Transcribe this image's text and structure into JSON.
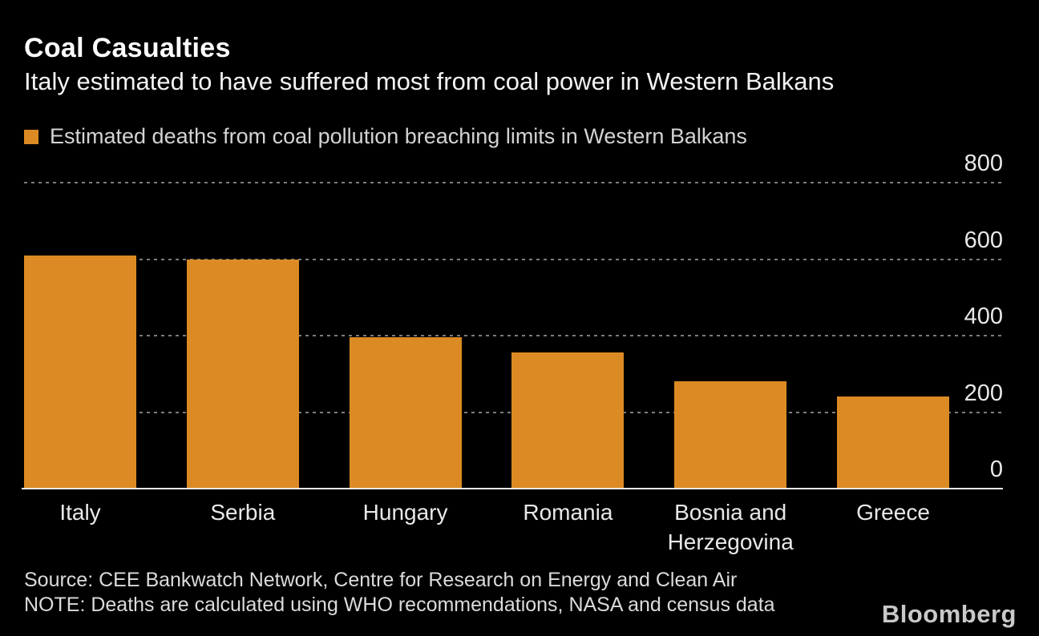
{
  "header": {
    "title": "Coal Casualties",
    "subtitle": "Italy estimated to have suffered most from coal power in Western Balkans"
  },
  "legend": {
    "label": "Estimated deaths from coal pollution breaching limits in Western Balkans"
  },
  "chart_data": {
    "type": "bar",
    "title": "Coal Casualties",
    "subtitle": "Italy estimated to have suffered most from coal power in Western Balkans",
    "series_label": "Estimated deaths from coal pollution breaching limits in Western Balkans",
    "categories": [
      "Italy",
      "Serbia",
      "Hungary",
      "Romania",
      "Bosnia and Herzegovina",
      "Greece"
    ],
    "values": [
      610,
      600,
      395,
      355,
      280,
      240
    ],
    "ylim": [
      0,
      800
    ],
    "yticks": [
      0,
      200,
      400,
      600,
      800
    ],
    "ytick_side": "right",
    "grid": "horizontal-dotted",
    "legend_position": "top-left",
    "bar_color": "#dc8a23",
    "grid_color": "#7c7c7c",
    "background_color": "#000000",
    "text_color": "#e8e8e8"
  },
  "footer": {
    "source": "Source: CEE Bankwatch Network, Centre for Research on Energy and Clean Air",
    "note": "NOTE: Deaths are calculated using WHO recommendations, NASA and census data",
    "brand": "Bloomberg"
  }
}
